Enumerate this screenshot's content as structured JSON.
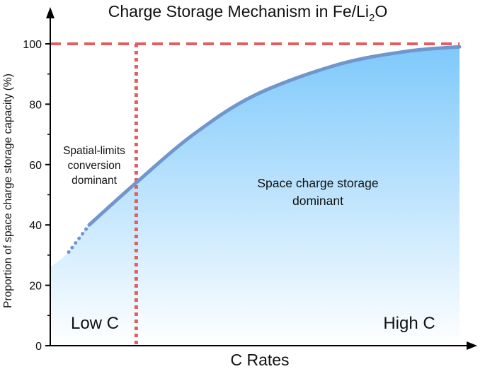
{
  "chart_data": {
    "type": "area",
    "title": "Charge Storage Mechanism in Fe/Li₂O",
    "title_main": "Charge Storage Mechanism in Fe/Li",
    "title_sub": "2",
    "title_end": "O",
    "xlabel": "C Rates",
    "ylabel": "Proportion of space charge storage capacity (%)",
    "ylim": [
      0,
      100
    ],
    "yticks": [
      0,
      20,
      40,
      60,
      80,
      100
    ],
    "ytick_labels": [
      "0",
      "20",
      "40",
      "60",
      "80",
      "100"
    ],
    "x_numeric": false,
    "grid": false,
    "curve": {
      "dotted_segment": [
        [
          0.045,
          31
        ],
        [
          0.095,
          40
        ]
      ],
      "solid_segment": [
        [
          0.095,
          40
        ],
        [
          0.21,
          54
        ],
        [
          0.35,
          70
        ],
        [
          0.5,
          83
        ],
        [
          0.7,
          93
        ],
        [
          0.87,
          97.5
        ],
        [
          1.0,
          99
        ]
      ]
    },
    "reference_lines": [
      {
        "orientation": "horizontal",
        "y": 100,
        "style": "dashed",
        "color": "#e06060"
      },
      {
        "orientation": "vertical",
        "x": 0.21,
        "style": "dotted",
        "color": "#e06060"
      }
    ],
    "annotations": {
      "spatial_line1": "Spatial-limits",
      "spatial_line2": "conversion",
      "spatial_line3": "dominant",
      "space_line1": "Space charge storage",
      "space_line2": "dominant",
      "low": "Low C",
      "high": "High C"
    },
    "colors": {
      "curve": "#7096cc",
      "fill_top": "#7ec9fb",
      "fill_bottom": "#ffffff",
      "reference": "#e06060",
      "axis": "#000000"
    }
  }
}
